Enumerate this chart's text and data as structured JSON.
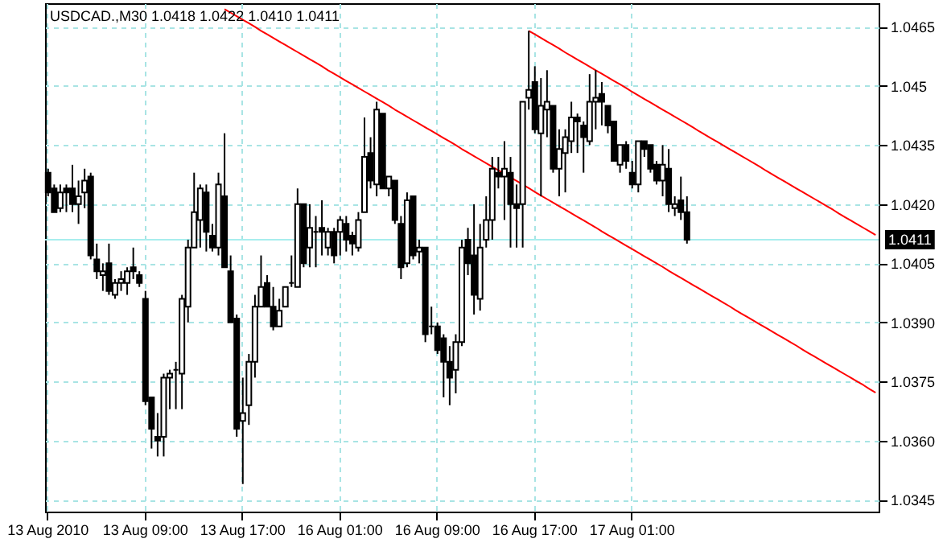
{
  "chart_data": {
    "type": "candlestick",
    "title": "USDCAD.,M30 1.0418 1.0422 1.0410 1.0411",
    "categories": [
      "13 Aug 2010",
      null,
      null,
      null,
      null,
      null,
      null,
      null,
      null,
      null,
      null,
      null,
      null,
      null,
      null,
      null,
      "13 Aug 09:00",
      null,
      null,
      null,
      null,
      null,
      null,
      null,
      null,
      null,
      null,
      null,
      null,
      null,
      null,
      null,
      "13 Aug 17:00",
      null,
      null,
      null,
      null,
      null,
      null,
      null,
      null,
      null,
      null,
      null,
      null,
      null,
      null,
      null,
      "16 Aug 01:00",
      null,
      null,
      null,
      null,
      null,
      null,
      null,
      null,
      null,
      null,
      null,
      null,
      null,
      null,
      null,
      "16 Aug 09:00",
      null,
      null,
      null,
      null,
      null,
      null,
      null,
      null,
      null,
      null,
      null,
      null,
      null,
      null,
      null,
      "16 Aug 17:00",
      null,
      null,
      null,
      null,
      null,
      null,
      null,
      null,
      null,
      null,
      null,
      null,
      null,
      null,
      null,
      "17 Aug 01:00",
      null,
      null,
      null,
      null,
      null,
      null,
      null,
      null,
      null,
      null,
      null,
      null,
      null,
      null,
      null,
      null,
      null,
      null,
      null,
      null,
      null,
      null,
      null,
      null,
      null,
      null,
      null,
      null,
      null,
      null,
      null,
      null,
      null,
      null,
      null,
      null,
      null,
      null,
      null,
      null
    ],
    "ohlc": [
      [
        1.0428,
        1.0429,
        1.0422,
        1.0423
      ],
      [
        1.0424,
        1.0425,
        1.0418,
        1.0418
      ],
      [
        1.0419,
        1.0425,
        1.0418,
        1.0423
      ],
      [
        1.0424,
        1.0425,
        1.0418,
        1.0423
      ],
      [
        1.0424,
        1.043,
        1.0418,
        1.042
      ],
      [
        1.042,
        1.0426,
        1.0415,
        1.0422
      ],
      [
        1.0423,
        1.0429,
        1.0419,
        1.0426
      ],
      [
        1.0427,
        1.0428,
        1.0406,
        1.0407
      ],
      [
        1.0406,
        1.041,
        1.0401,
        1.0403
      ],
      [
        1.0402,
        1.0405,
        1.0398,
        1.0403
      ],
      [
        1.0405,
        1.041,
        1.0397,
        1.0398
      ],
      [
        1.0397,
        1.0401,
        1.0396,
        1.04
      ],
      [
        1.04,
        1.0403,
        1.0398,
        1.0401
      ],
      [
        1.04,
        1.0404,
        1.0397,
        1.0403
      ],
      [
        1.0404,
        1.0409,
        1.0401,
        1.0403
      ],
      [
        1.0402,
        1.0403,
        1.0399,
        1.04
      ],
      [
        1.0396,
        1.0398,
        1.0369,
        1.037
      ],
      [
        1.0371,
        1.0371,
        1.0358,
        1.0363
      ],
      [
        1.0361,
        1.0367,
        1.0356,
        1.036
      ],
      [
        1.0361,
        1.0377,
        1.0356,
        1.0376
      ],
      [
        1.0376,
        1.0378,
        1.0368,
        1.0377
      ],
      [
        1.0378,
        1.038,
        1.0368,
        1.0378
      ],
      [
        1.0377,
        1.0397,
        1.0368,
        1.0396
      ],
      [
        1.0394,
        1.0411,
        1.039,
        1.0409
      ],
      [
        1.0409,
        1.0428,
        1.0409,
        1.0418
      ],
      [
        1.0416,
        1.0425,
        1.0409,
        1.0424
      ],
      [
        1.0423,
        1.0425,
        1.0408,
        1.0413
      ],
      [
        1.0412,
        1.0415,
        1.0408,
        1.0409
      ],
      [
        1.0409,
        1.0428,
        1.0407,
        1.0425
      ],
      [
        1.0422,
        1.0438,
        1.0404,
        1.0404
      ],
      [
        1.0403,
        1.0407,
        1.039,
        1.039
      ],
      [
        1.0391,
        1.0392,
        1.0361,
        1.0363
      ],
      [
        1.0365,
        1.0376,
        1.0349,
        1.0367
      ],
      [
        1.0369,
        1.0382,
        1.0364,
        1.038
      ],
      [
        1.038,
        1.0397,
        1.0376,
        1.0394
      ],
      [
        1.0394,
        1.0407,
        1.0394,
        1.0399
      ],
      [
        1.04,
        1.0402,
        1.0394,
        1.0394
      ],
      [
        1.0394,
        1.0399,
        1.0388,
        1.0389
      ],
      [
        1.0389,
        1.0396,
        1.0389,
        1.0393
      ],
      [
        1.0394,
        1.0399,
        1.0394,
        1.0399
      ],
      [
        1.04,
        1.0407,
        1.0399,
        1.04
      ],
      [
        1.0399,
        1.0424,
        1.0399,
        1.042
      ],
      [
        1.042,
        1.042,
        1.0404,
        1.0405
      ],
      [
        1.0409,
        1.042,
        1.0404,
        1.0414
      ],
      [
        1.0413,
        1.0417,
        1.0404,
        1.0413
      ],
      [
        1.0414,
        1.0421,
        1.0407,
        1.0413
      ],
      [
        1.0409,
        1.0414,
        1.0407,
        1.0413
      ],
      [
        1.0413,
        1.0414,
        1.0405,
        1.0407
      ],
      [
        1.0413,
        1.0417,
        1.0407,
        1.0416
      ],
      [
        1.0415,
        1.0417,
        1.0408,
        1.0411
      ],
      [
        1.0412,
        1.0413,
        1.0407,
        1.041
      ],
      [
        1.0409,
        1.0418,
        1.0408,
        1.0416
      ],
      [
        1.0418,
        1.0442,
        1.0418,
        1.0432
      ],
      [
        1.0433,
        1.0437,
        1.0424,
        1.0426
      ],
      [
        1.0425,
        1.0446,
        1.0422,
        1.0444
      ],
      [
        1.0443,
        1.0443,
        1.0424,
        1.0424
      ],
      [
        1.0424,
        1.0427,
        1.0422,
        1.0427
      ],
      [
        1.0426,
        1.0426,
        1.0415,
        1.0416
      ],
      [
        1.0415,
        1.0417,
        1.0401,
        1.0404
      ],
      [
        1.0405,
        1.0423,
        1.0404,
        1.0421
      ],
      [
        1.0422,
        1.0422,
        1.0406,
        1.0407
      ],
      [
        1.0408,
        1.0411,
        1.0405,
        1.0409
      ],
      [
        1.0409,
        1.0409,
        1.0385,
        1.0387
      ],
      [
        1.0389,
        1.0394,
        1.0387,
        1.0389
      ],
      [
        1.0389,
        1.039,
        1.0382,
        1.0383
      ],
      [
        1.0386,
        1.0387,
        1.0371,
        1.038
      ],
      [
        1.038,
        1.0384,
        1.0369,
        1.0376
      ],
      [
        1.0378,
        1.0387,
        1.0372,
        1.0385
      ],
      [
        1.0385,
        1.0411,
        1.0384,
        1.0409
      ],
      [
        1.0411,
        1.0414,
        1.0402,
        1.0405
      ],
      [
        1.0407,
        1.042,
        1.0392,
        1.0397
      ],
      [
        1.0396,
        1.0415,
        1.0393,
        1.0409
      ],
      [
        1.0411,
        1.0422,
        1.0409,
        1.0416
      ],
      [
        1.0416,
        1.0432,
        1.0411,
        1.0429
      ],
      [
        1.0428,
        1.0432,
        1.0424,
        1.0427
      ],
      [
        1.0427,
        1.0436,
        1.0416,
        1.0429
      ],
      [
        1.0428,
        1.0432,
        1.0409,
        1.042
      ],
      [
        1.042,
        1.0425,
        1.0409,
        1.0419
      ],
      [
        1.042,
        1.0446,
        1.0409,
        1.0446
      ],
      [
        1.0447,
        1.0464,
        1.0444,
        1.0449
      ],
      [
        1.0451,
        1.0455,
        1.0438,
        1.0439
      ],
      [
        1.0438,
        1.0452,
        1.0422,
        1.0445
      ],
      [
        1.0444,
        1.0454,
        1.0437,
        1.0446
      ],
      [
        1.0445,
        1.0445,
        1.0428,
        1.0429
      ],
      [
        1.0429,
        1.0439,
        1.0422,
        1.0434
      ],
      [
        1.0433,
        1.0439,
        1.0423,
        1.0437
      ],
      [
        1.0436,
        1.0446,
        1.0433,
        1.0442
      ],
      [
        1.0442,
        1.0443,
        1.0433,
        1.0441
      ],
      [
        1.044,
        1.0441,
        1.0428,
        1.0437
      ],
      [
        1.0436,
        1.0453,
        1.0435,
        1.0446
      ],
      [
        1.0446,
        1.0454,
        1.0439,
        1.0447
      ],
      [
        1.0448,
        1.0451,
        1.044,
        1.0446
      ],
      [
        1.0445,
        1.0445,
        1.0438,
        1.044
      ],
      [
        1.0441,
        1.0441,
        1.0431,
        1.0431
      ],
      [
        1.043,
        1.0435,
        1.0428,
        1.0435
      ],
      [
        1.0435,
        1.0436,
        1.0429,
        1.0431
      ],
      [
        1.0428,
        1.0431,
        1.0424,
        1.0425
      ],
      [
        1.0425,
        1.0436,
        1.0423,
        1.0436
      ],
      [
        1.0436,
        1.0436,
        1.0432,
        1.0434
      ],
      [
        1.0435,
        1.0435,
        1.0428,
        1.0429
      ],
      [
        1.043,
        1.0431,
        1.0425,
        1.0426
      ],
      [
        1.0426,
        1.0435,
        1.0422,
        1.043
      ],
      [
        1.0429,
        1.0434,
        1.0418,
        1.042
      ],
      [
        1.0419,
        1.0422,
        1.0417,
        1.042
      ],
      [
        1.0421,
        1.0427,
        1.0416,
        1.0418
      ],
      [
        1.0418,
        1.0422,
        1.041,
        1.0411
      ],
      null,
      null,
      null,
      null,
      null,
      null,
      null,
      null,
      null,
      null,
      null,
      null,
      null,
      null,
      null,
      null,
      null,
      null,
      null,
      null,
      null,
      null,
      null,
      null,
      null,
      null,
      null,
      null,
      null,
      null,
      null
    ],
    "series": [
      {
        "type": "line",
        "color": "#ff0000",
        "values": [
          null,
          null,
          null,
          null,
          null,
          null,
          null,
          null,
          null,
          null,
          null,
          null,
          null,
          null,
          null,
          null,
          null,
          null,
          null,
          null,
          null,
          null,
          null,
          null,
          null,
          null,
          null,
          null,
          null,
          1.04695,
          1.04686,
          1.04677,
          1.04668,
          1.04659,
          1.0465,
          1.0464,
          1.04631,
          1.04622,
          1.04613,
          1.04604,
          1.04595,
          1.04586,
          1.04577,
          1.04568,
          1.04559,
          1.0455,
          1.0454,
          1.04531,
          1.04522,
          1.04513,
          1.04504,
          1.04495,
          1.04486,
          1.04477,
          1.04468,
          1.04459,
          1.0445,
          1.0444,
          1.04431,
          1.04422,
          1.04413,
          1.04404,
          1.04395,
          1.04386,
          1.04377,
          1.04368,
          1.04359,
          1.0435,
          1.0434,
          1.04331,
          1.04322,
          1.04313,
          1.04304,
          1.04295,
          1.04286,
          1.04277,
          1.04268,
          1.04259,
          1.0425,
          1.04241,
          1.04231,
          1.04222,
          1.04213,
          1.04204,
          1.04195,
          1.04186,
          1.04177,
          1.04168,
          1.04159,
          1.0415,
          1.04141,
          1.04131,
          1.04122,
          1.04113,
          1.04104,
          1.04095,
          1.04086,
          1.04077,
          1.04068,
          1.04059,
          1.0405,
          1.04041,
          1.04031,
          1.04022,
          1.04013,
          1.04004,
          1.03995,
          1.03986,
          1.03977,
          1.03968,
          1.03959,
          1.0395,
          1.03941,
          1.03931,
          1.03922,
          1.03913,
          1.03904,
          1.03895,
          1.03886,
          1.03877,
          1.03868,
          1.03859,
          1.0385,
          1.03841,
          1.03831,
          1.03822,
          1.03813,
          1.03804,
          1.03795,
          1.03786,
          1.03777,
          1.03768,
          1.03759,
          1.0375,
          1.03741,
          1.03731,
          1.03722
        ]
      },
      {
        "type": "line",
        "color": "#ff0000",
        "values": [
          null,
          null,
          null,
          null,
          null,
          null,
          null,
          null,
          null,
          null,
          null,
          null,
          null,
          null,
          null,
          null,
          null,
          null,
          null,
          null,
          null,
          null,
          null,
          null,
          null,
          null,
          null,
          null,
          null,
          null,
          null,
          null,
          null,
          null,
          null,
          null,
          null,
          null,
          null,
          null,
          null,
          null,
          null,
          null,
          null,
          null,
          null,
          null,
          null,
          null,
          null,
          null,
          null,
          null,
          null,
          null,
          null,
          null,
          null,
          null,
          null,
          null,
          null,
          null,
          null,
          null,
          null,
          null,
          null,
          null,
          null,
          null,
          null,
          null,
          null,
          null,
          null,
          null,
          null,
          1.0464,
          1.04631,
          1.04622,
          1.04613,
          1.04604,
          1.04595,
          1.04585,
          1.04576,
          1.04567,
          1.04558,
          1.04549,
          1.0454,
          1.04531,
          1.04522,
          1.04513,
          1.04504,
          1.04495,
          1.04485,
          1.04476,
          1.04467,
          1.04458,
          1.04449,
          1.0444,
          1.04431,
          1.04422,
          1.04413,
          1.04404,
          1.04395,
          1.04385,
          1.04376,
          1.04367,
          1.04358,
          1.04349,
          1.0434,
          1.04331,
          1.04322,
          1.04313,
          1.04304,
          1.04295,
          1.04285,
          1.04276,
          1.04267,
          1.04258,
          1.04249,
          1.0424,
          1.04231,
          1.04222,
          1.04213,
          1.04204,
          1.04195,
          1.04186,
          1.04176,
          1.04167,
          1.04158,
          1.04149,
          1.0414,
          1.04131,
          1.04122
        ]
      }
    ],
    "ylim": [
      1.0342,
      1.0471
    ],
    "yticks": [
      1.0345,
      {
        "value": 1.036,
        "label": "1.0360"
      },
      1.0375,
      {
        "value": 1.039,
        "label": "1.0390"
      },
      1.0405,
      {
        "value": 1.042,
        "label": "1.0420"
      },
      1.0435,
      1.045,
      1.0465
    ],
    "grid": true,
    "ref_lines": [
      {
        "axis": "y",
        "value": 1.0411,
        "label": "1.0411",
        "color": "#a8eeee"
      }
    ]
  }
}
